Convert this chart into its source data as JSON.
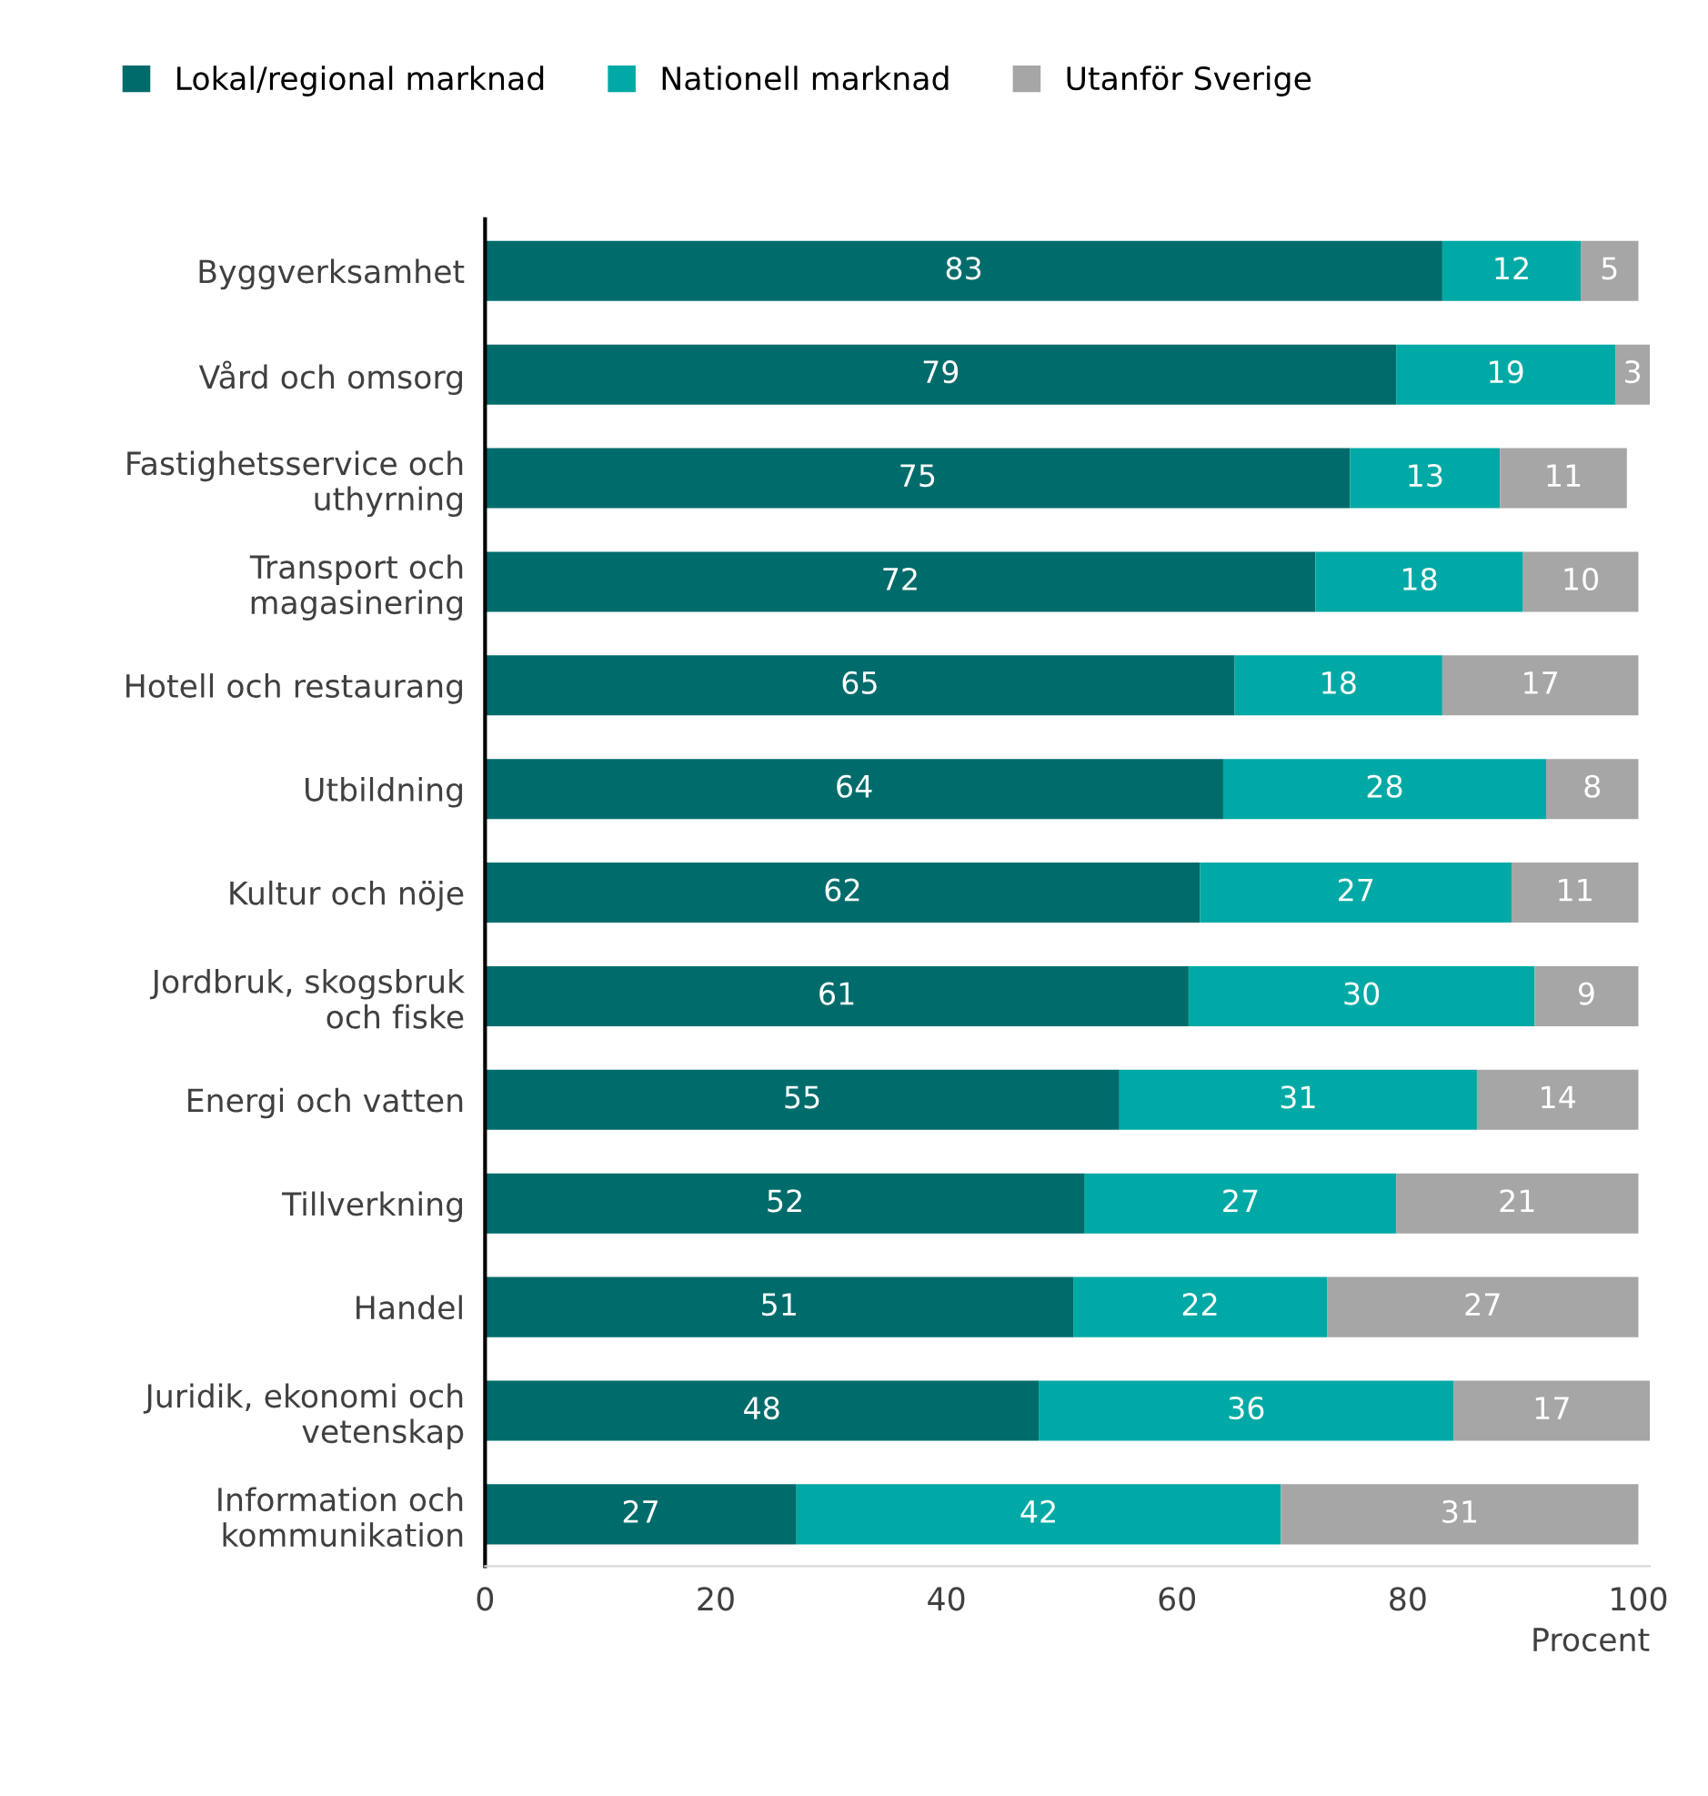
{
  "chart_data": {
    "type": "bar",
    "orientation": "horizontal",
    "stacked": true,
    "xlabel": "Procent",
    "categories": [
      "Byggverksamhet",
      "Vård och omsorg",
      "Fastighetsservice och\nuthyrning",
      "Transport och\nmagasinering",
      "Hotell och restaurang",
      "Utbildning",
      "Kultur och nöje",
      "Jordbruk, skogsbruk\noch fiske",
      "Energi och vatten",
      "Tillverkning",
      "Handel",
      "Juridik, ekonomi och\nvetenskap",
      "Information och\nkommunikation"
    ],
    "series": [
      {
        "name": "Lokal/regional marknad",
        "color": "#006b6b",
        "values": [
          83,
          79,
          75,
          72,
          65,
          64,
          62,
          61,
          55,
          52,
          51,
          48,
          27
        ]
      },
      {
        "name": "Nationell marknad",
        "color": "#00a9a5",
        "values": [
          12,
          19,
          13,
          18,
          18,
          28,
          27,
          30,
          31,
          27,
          22,
          36,
          42
        ]
      },
      {
        "name": "Utanför Sverige",
        "color": "#a6a6a6",
        "values": [
          5,
          3,
          11,
          10,
          17,
          8,
          11,
          9,
          14,
          21,
          27,
          17,
          31
        ]
      }
    ],
    "xlim": [
      0,
      101
    ],
    "xticks": [
      0,
      20,
      40,
      60,
      80,
      100
    ],
    "data_labels": true,
    "legend": "top",
    "grid": false
  }
}
